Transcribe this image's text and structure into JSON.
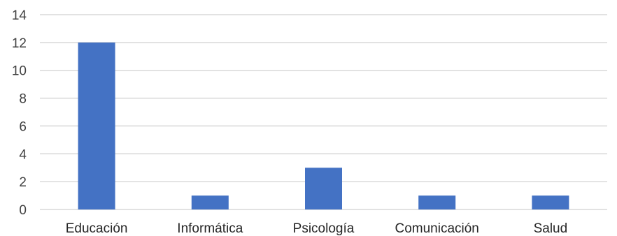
{
  "chart_data": {
    "type": "bar",
    "categories": [
      "Educación",
      "Informática",
      "Psicología",
      "Comunicación",
      "Salud"
    ],
    "values": [
      12,
      1,
      3,
      1,
      1
    ],
    "title": "",
    "xlabel": "",
    "ylabel": "",
    "ylim": [
      0,
      14
    ],
    "yticks": [
      0,
      2,
      4,
      6,
      8,
      10,
      12,
      14
    ],
    "grid": "horizontal",
    "legend": "none",
    "bar_color": "#4472C4"
  }
}
